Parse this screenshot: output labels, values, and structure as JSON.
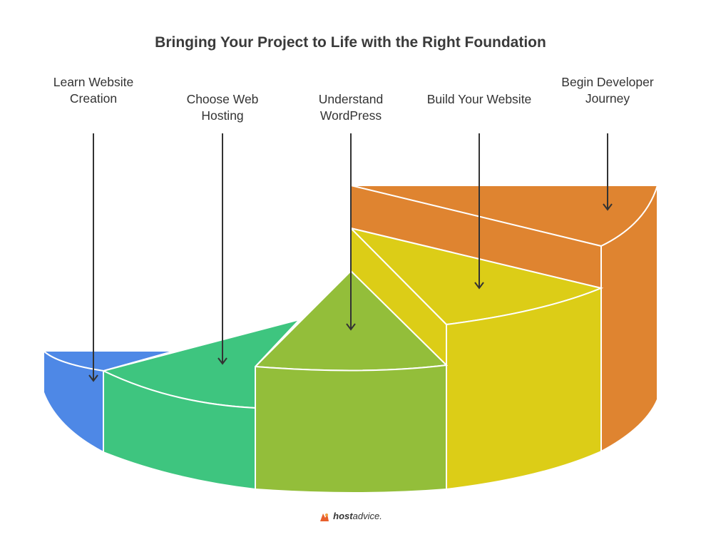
{
  "title": "Bringing Your Project to Life with the Right Foundation",
  "segments": [
    {
      "label": "Learn Website Creation",
      "color": "#4e88e6"
    },
    {
      "label": "Choose Web Hosting",
      "color": "#3ec57f"
    },
    {
      "label": "Understand WordPress",
      "color": "#93be3a"
    },
    {
      "label": "Build Your Website",
      "color": "#dccd17"
    },
    {
      "label": "Begin Developer Journey",
      "color": "#df8430"
    }
  ],
  "footer": {
    "brand_strong": "host",
    "brand_light": "advice."
  }
}
